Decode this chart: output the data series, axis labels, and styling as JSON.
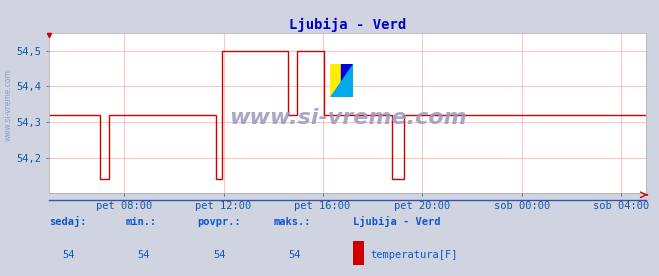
{
  "title": "Ljubija - Verd",
  "title_color": "#0000cc",
  "bg_color": "#d0d4e0",
  "plot_bg_color": "#ffffff",
  "grid_color": "#ffaaaa",
  "line_color": "#cc0000",
  "watermark": "www.si-vreme.com",
  "watermark_color": "#9999bb",
  "side_label": "www.si-vreme.com",
  "xlabel_ticks": [
    "pet 08:00",
    "pet 12:00",
    "pet 16:00",
    "pet 20:00",
    "sob 00:00",
    "sob 04:00"
  ],
  "tick_positions": [
    0.125,
    0.292,
    0.458,
    0.625,
    0.792,
    0.958
  ],
  "ylim_min": 54.1,
  "ylim_max": 54.55,
  "yticks": [
    54.2,
    54.3,
    54.4,
    54.5
  ],
  "ytick_labels": [
    "54,2",
    "54,3",
    "54,4",
    "54,5"
  ],
  "footer_labels": [
    "sedaj:",
    "min.:",
    "povpr.:",
    "maks.:"
  ],
  "footer_vals": [
    "54",
    "54",
    "54",
    "54"
  ],
  "legend_title": "Ljubija - Verd",
  "legend_entry": "temperatura[F]",
  "legend_color": "#cc0000",
  "x_pts": [
    0.0,
    0.085,
    0.085,
    0.1,
    0.1,
    0.115,
    0.115,
    0.28,
    0.28,
    0.29,
    0.29,
    0.4,
    0.4,
    0.415,
    0.415,
    0.46,
    0.46,
    0.47,
    0.47,
    0.575,
    0.575,
    0.595,
    0.595,
    1.0
  ],
  "y_pts": [
    54.32,
    54.32,
    54.14,
    54.14,
    54.32,
    54.32,
    54.32,
    54.32,
    54.14,
    54.14,
    54.5,
    54.5,
    54.32,
    54.32,
    54.5,
    54.5,
    54.32,
    54.32,
    54.32,
    54.32,
    54.14,
    54.14,
    54.32,
    54.32
  ],
  "figsize": [
    6.59,
    2.76
  ],
  "dpi": 100
}
